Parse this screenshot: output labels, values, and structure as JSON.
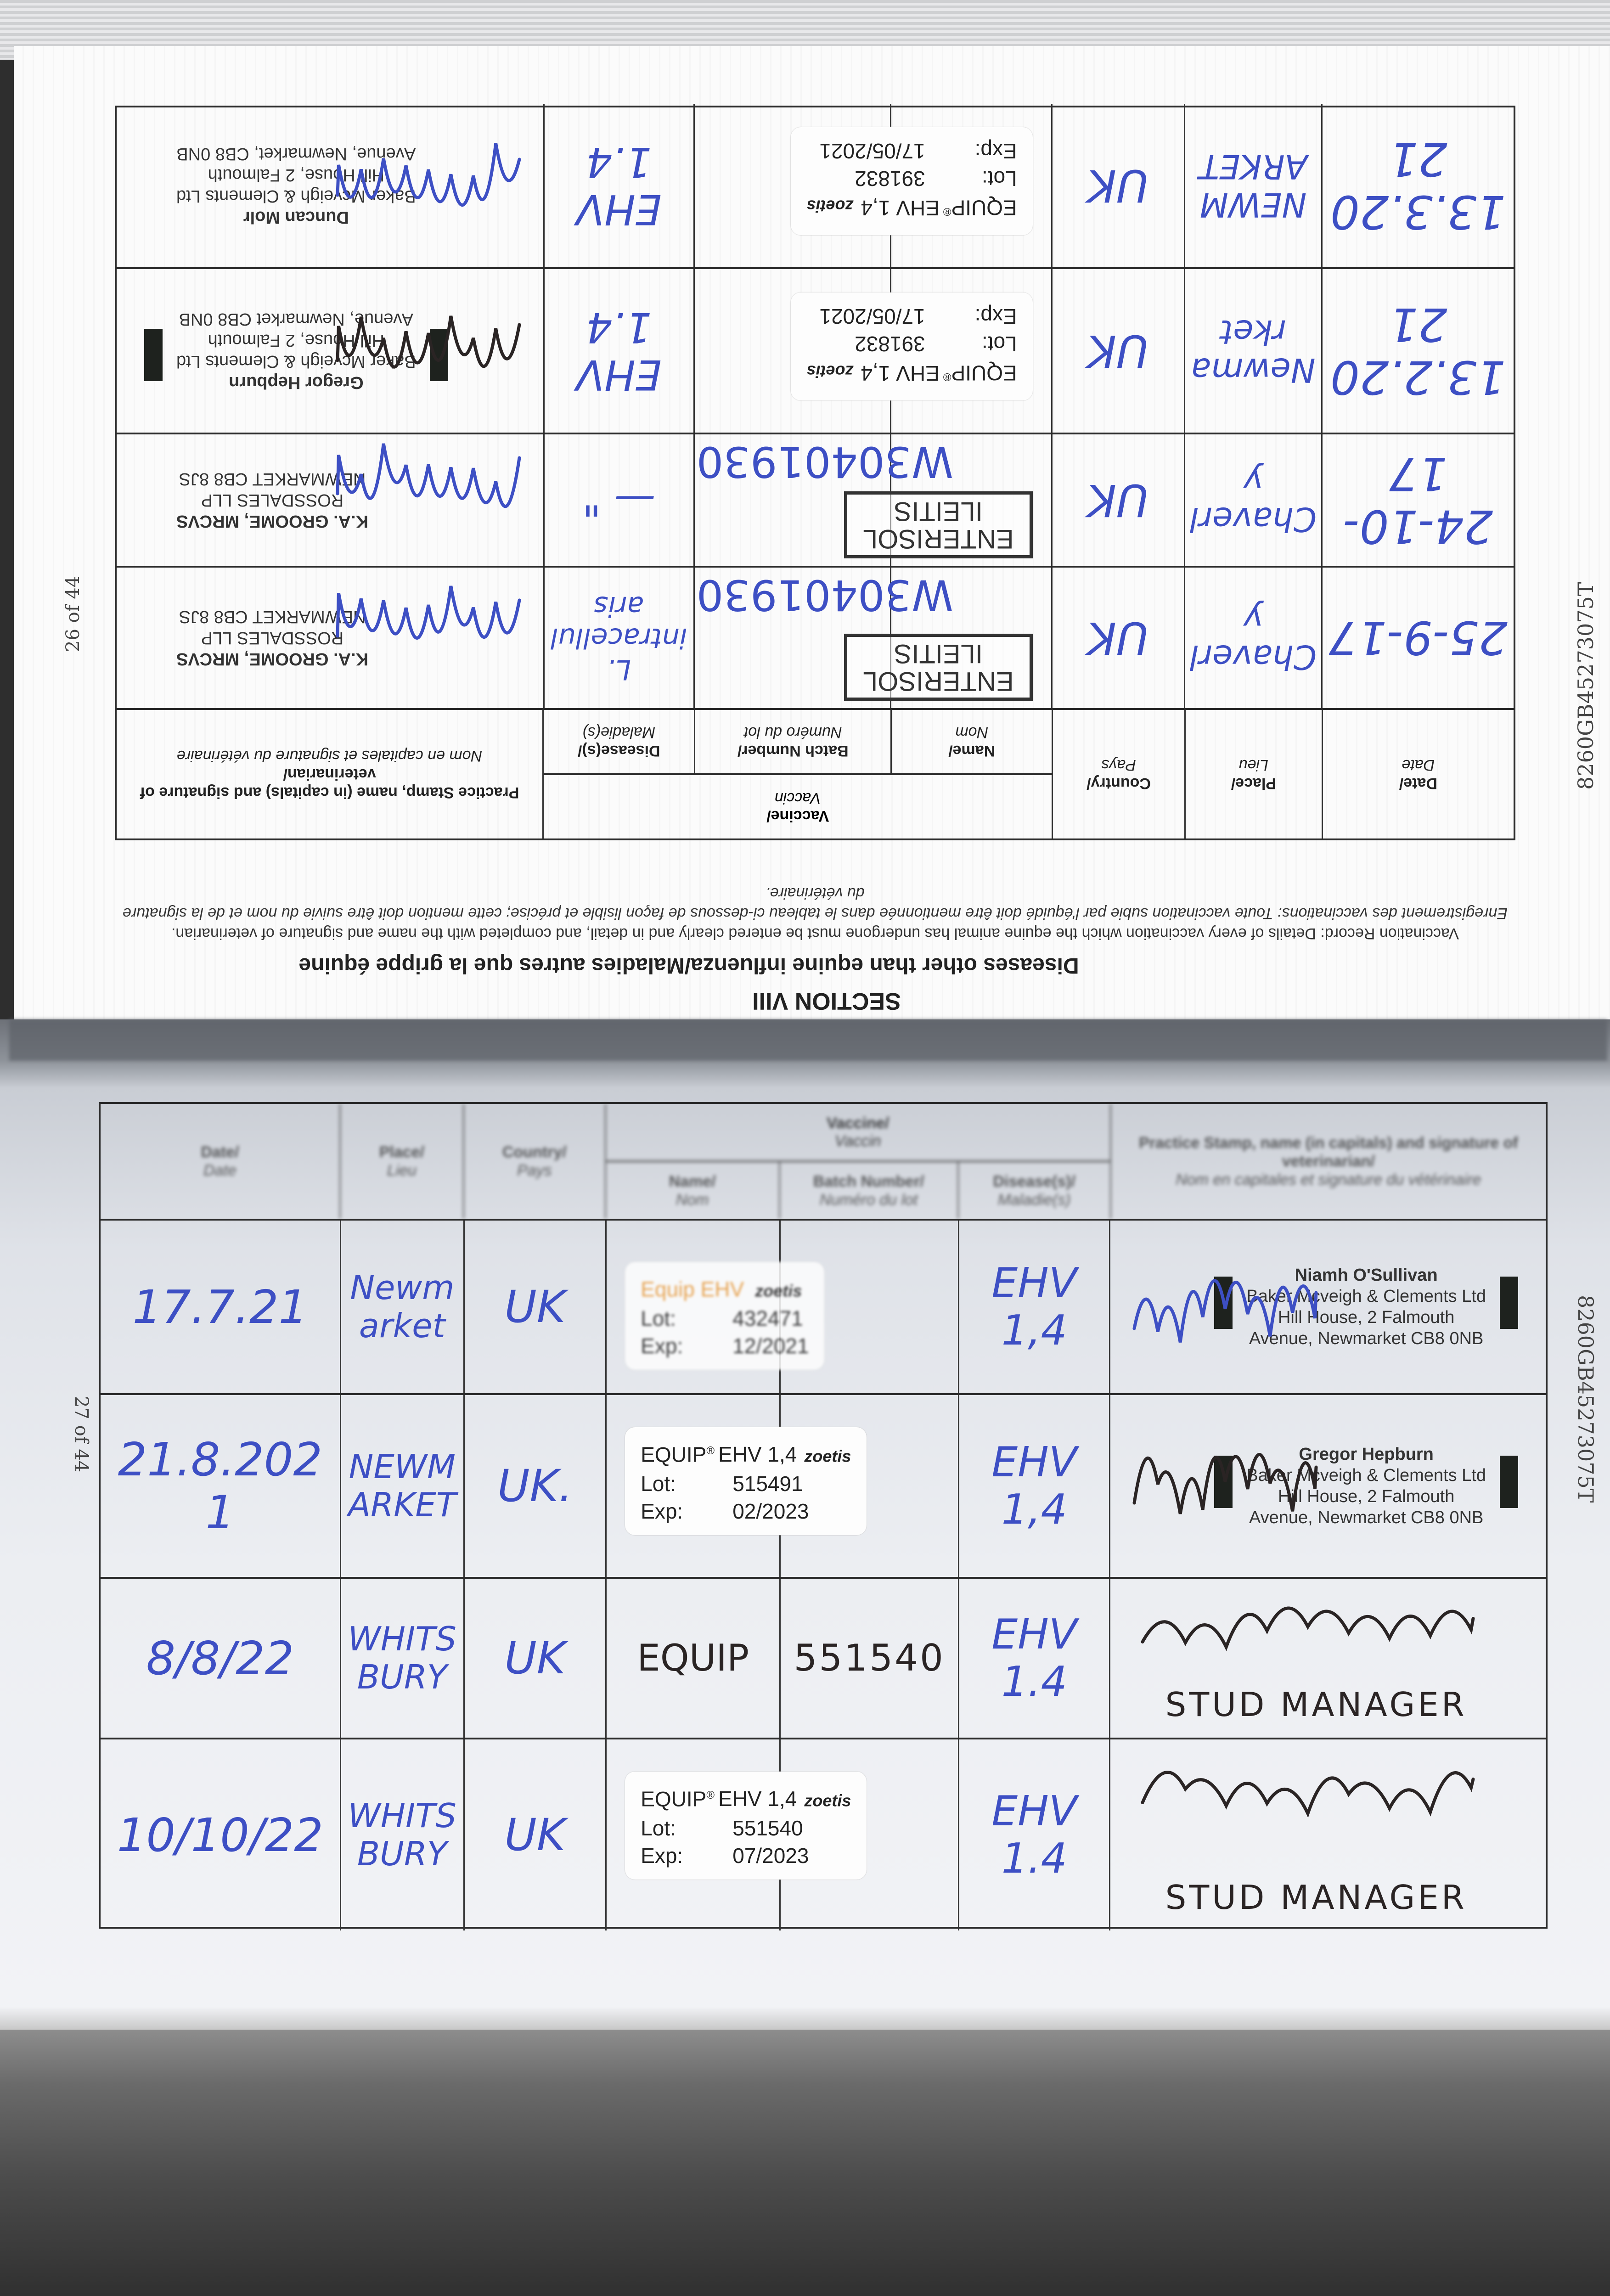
{
  "headers": {
    "date": "Date/",
    "date_fr": "Date",
    "place": "Place/",
    "place_fr": "Lieu",
    "country": "Country/",
    "country_fr": "Pays",
    "vaccine": "Vaccine/",
    "vaccine_fr": "Vaccin",
    "name": "Name/",
    "name_fr": "Nom",
    "batch": "Batch Number/",
    "batch_fr": "Numéro du lot",
    "disease": "Disease(s)/",
    "disease_fr": "Maladie(s)",
    "stamp": "Practice Stamp, name (in capitals) and signature of veterinarian/",
    "stamp_fr": "Nom en capitales et signature du vétérinaire"
  },
  "top_page": {
    "orientation": "upside-down",
    "section": "SECTION VIII",
    "heading": "Diseases other than equine influenza/Maladies autres que la grippe équine",
    "instructions_en": "Vaccination Record: Details of every vaccination which the equine animal has undergone must be entered clearly and in detail, and completed with the name and signature of veterinarian.",
    "instructions_fr": "Enregistrement des vaccinations: Toute vaccination subie par l'équidé doit être mentionnée dans le tableau ci-dessous de façon lisible et précise; cette mention doit être suivie du nom et de la signature du vétérinaire.",
    "page_number": "26 of 44",
    "passport_id": "8260GB45273075T",
    "rows": [
      {
        "date": "25-9-17",
        "place": "Chaverly",
        "country": "UK",
        "product_stamp": [
          "ENTERISOL",
          "ILEITIS"
        ],
        "batch": "W30401930",
        "disease": "L. intracellularis",
        "vet": [
          "K.A. GROOME, MRCVS",
          "ROSSDALES LLP",
          "NEWMARKET CB8 8JS"
        ],
        "ink": "#3d4fc4"
      },
      {
        "date": "24-10-17",
        "place": "Chaverly",
        "country": "UK",
        "product_stamp": [
          "ENTERISOL",
          "ILEITIS"
        ],
        "batch": "W30401930",
        "disease": "— \"",
        "vet": [
          "K.A. GROOME, MRCVS",
          "ROSSDALES LLP",
          "NEWMARKET CB8 8JS"
        ],
        "ink": "#3d4fc4"
      },
      {
        "date": "13.2.2021",
        "place": "Newmarket",
        "country": "UK",
        "sticker": {
          "brand": "EQUIP",
          "reg": "®",
          "product": "EHV 1,4",
          "maker": "zoetis",
          "lot_label": "Lot:",
          "lot": "391832",
          "exp_label": "Exp:",
          "exp": "17/05/2021"
        },
        "disease": "EHV 1.4",
        "vet": [
          "Gregor Hepburn",
          "Baker Mcveigh & Clements Ltd",
          "Hill House, 2 Falmouth",
          "Avenue, Newmarket CB8 0NB"
        ],
        "bars": true,
        "ink": "#2a2424"
      },
      {
        "date": "13.3.2021",
        "place": "NEWMARKET",
        "country": "UK",
        "sticker": {
          "brand": "EQUIP",
          "reg": "®",
          "product": "EHV 1,4",
          "maker": "zoetis",
          "lot_label": "Lot:",
          "lot": "391832",
          "exp_label": "Exp:",
          "exp": "17/05/2021"
        },
        "disease": "EHV 1.4",
        "vet": [
          "Duncan Molr",
          "Baker Mcveigh & Clements Ltd",
          "Hill House, 2 Falmouth",
          "Avenue, Newmarket, CB8 0NB"
        ],
        "ink": "#3d4fc4"
      }
    ]
  },
  "bottom_page": {
    "page_number": "27 of 44",
    "passport_id": "8260GB45273075T",
    "rows": [
      {
        "date": "17.7.21",
        "place": "Newmarket",
        "country": "UK",
        "sticker": {
          "brand": "Equip EHV",
          "reg": "",
          "product": "",
          "maker": "zoetis",
          "lot_label": "Lot:",
          "lot": "432471",
          "exp_label": "Exp:",
          "exp": "12/2021",
          "faded": true
        },
        "disease": "EHV 1,4",
        "vet": [
          "Niamh O'Sullivan",
          "Baker Mcveigh & Clements Ltd",
          "Hill House, 2 Falmouth",
          "Avenue, Newmarket CB8 0NB"
        ],
        "bars": true,
        "ink": "#3d4fc4"
      },
      {
        "date": "21.8.2021",
        "place": "NEWMARKET",
        "country": "UK.",
        "sticker": {
          "brand": "EQUIP",
          "reg": "®",
          "product": "EHV 1,4",
          "maker": "zoetis",
          "lot_label": "Lot:",
          "lot": "515491",
          "exp_label": "Exp:",
          "exp": "02/2023"
        },
        "disease": "EHV 1,4",
        "vet": [
          "Gregor Hepburn",
          "Baker Mcveigh & Clements Ltd",
          "Hill House, 2 Falmouth",
          "Avenue, Newmarket CB8 0NB"
        ],
        "bars": true,
        "ink": "#2a2424"
      },
      {
        "date": "8/8/22",
        "place": "WHITSBURY",
        "country": "UK",
        "name": "EQUIP",
        "batch": "551540",
        "disease": "EHV 1.4",
        "vet_note": "STUD MANAGER",
        "ink": "#2a2424"
      },
      {
        "date": "10/10/22",
        "place": "WHITSBURY",
        "country": "UK",
        "sticker": {
          "brand": "EQUIP",
          "reg": "®",
          "product": "EHV 1,4",
          "maker": "zoetis",
          "lot_label": "Lot:",
          "lot": "551540",
          "exp_label": "Exp:",
          "exp": "07/2023"
        },
        "disease": "EHV 1.4",
        "vet_note": "STUD MANAGER",
        "ink": "#2a2424"
      }
    ]
  },
  "colors": {
    "ink_blue": "#3d4fc4",
    "ink_black": "#2a2424",
    "paper": "#fbfbfb"
  }
}
